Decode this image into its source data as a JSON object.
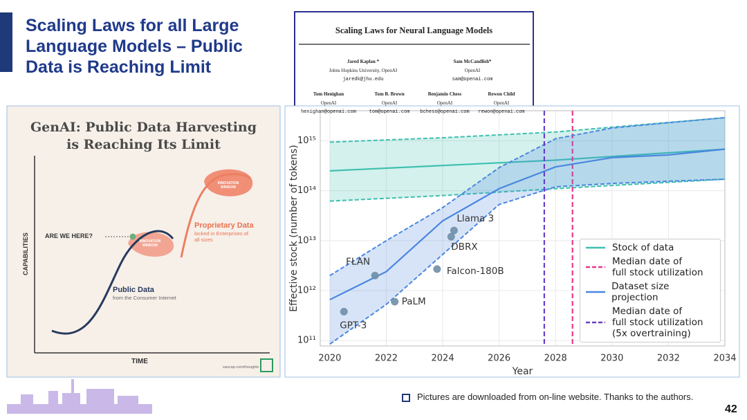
{
  "slide": {
    "title": "Scaling Laws for all Large\nLanguage Models – Public\nData is Reaching Limit",
    "footnote": "Pictures are downloaded from on-line website. Thanks to the authors.",
    "page_number": "42"
  },
  "paper": {
    "title": "Scaling Laws for Neural Language Models",
    "authors": [
      {
        "name": "Jared Kaplan *",
        "affiliation": "Johns Hopkins University, OpenAI",
        "email": "jaredk@jhu.edu"
      },
      {
        "name": "Sam McCandlish*",
        "affiliation": "OpenAI",
        "email": "sam@openai.com"
      },
      {
        "name": "Tom Henighan",
        "affiliation": "OpenAI",
        "email": "henighan@openai.com"
      },
      {
        "name": "Tom B. Brown",
        "affiliation": "OpenAI",
        "email": "tom@openai.com"
      },
      {
        "name": "Benjamin Chess",
        "affiliation": "OpenAI",
        "email": "bchess@openai.com"
      },
      {
        "name": "Rewon Child",
        "affiliation": "OpenAI",
        "email": "rewon@openai.com"
      }
    ]
  },
  "infographic": {
    "title": "GenAI: Public Data Harvesting\nis Reaching Its Limit",
    "y_label": "CAPABILITIES",
    "x_label": "TIME",
    "question": "ARE WE HERE?",
    "innovation_windows": [
      "INNOVATION\nWINDOW",
      "INNOVATION\nWINDOW"
    ],
    "proprietary_title": "Proprietary Data",
    "proprietary_subtitle": "locked in Enterprises of\nall sizes",
    "public_title": "Public Data",
    "public_subtitle": "from the Consumer Internet",
    "source": "sancap.com/thoughts"
  },
  "chart_data": {
    "type": "line",
    "x_label": "Year",
    "y_label": "Effective stock (number of tokens)",
    "xlim": [
      2019.66,
      2034
    ],
    "xticks": [
      2020,
      2022,
      2024,
      2026,
      2028,
      2030,
      2032,
      2034
    ],
    "ylim": [
      78000000000,
      4000000000000000
    ],
    "yscale": "log",
    "grid": true,
    "yticks": [
      {
        "value": 100000000000,
        "label": "10¹¹"
      },
      {
        "value": 1000000000000,
        "label": "10¹²"
      },
      {
        "value": 10000000000000,
        "label": "10¹³"
      },
      {
        "value": 100000000000000,
        "label": "10¹⁴"
      },
      {
        "value": 1000000000000000,
        "label": "10¹⁵"
      }
    ],
    "series": [
      {
        "name": "Stock of data",
        "color": "#3dbfaf",
        "x": [
          2020,
          2024,
          2028,
          2034
        ],
        "values": [
          250000000000000,
          320000000000000,
          410000000000000,
          680000000000000
        ],
        "lower": [
          62000000000000,
          80000000000000,
          110000000000000,
          170000000000000
        ],
        "upper": [
          940000000000000,
          1150000000000000,
          1500000000000000,
          2900000000000000
        ]
      },
      {
        "name": "Median date of\nfull stock utilization",
        "color": "#e8388a",
        "x": 2028.6,
        "dashed": true
      },
      {
        "name": "Dataset size projection",
        "color": "#4a86e0",
        "x": [
          2020,
          2022,
          2024,
          2026,
          2028,
          2030,
          2032,
          2034
        ],
        "values": [
          660000000000,
          2400000000000,
          25000000000000,
          110000000000000,
          300000000000000,
          460000000000000,
          520000000000000,
          680000000000000
        ],
        "lower": [
          85000000000,
          530000000000,
          5300000000000,
          53000000000000,
          120000000000000,
          140000000000000,
          155000000000000,
          170000000000000
        ],
        "upper": [
          2000000000000,
          10000000000000,
          46000000000000,
          290000000000000,
          1100000000000000,
          1800000000000000,
          2300000000000000,
          2900000000000000
        ]
      },
      {
        "name": "Median date of\nfull stock utilization\n(5x overtraining)",
        "color": "#6a3fc8",
        "x": 2027.6,
        "dashed": true
      }
    ],
    "points": {
      "color": "#6f8ea6",
      "labels": [
        "GPT-3",
        "FLAN",
        "PaLM",
        "Falcon-180B",
        "DBRX",
        "Llama 3"
      ],
      "x": [
        2020.5,
        2021.6,
        2022.3,
        2023.8,
        2024.3,
        2024.4
      ],
      "values": [
        380000000000,
        2000000000000,
        600000000000,
        2700000000000,
        12000000000000,
        16000000000000
      ]
    }
  }
}
